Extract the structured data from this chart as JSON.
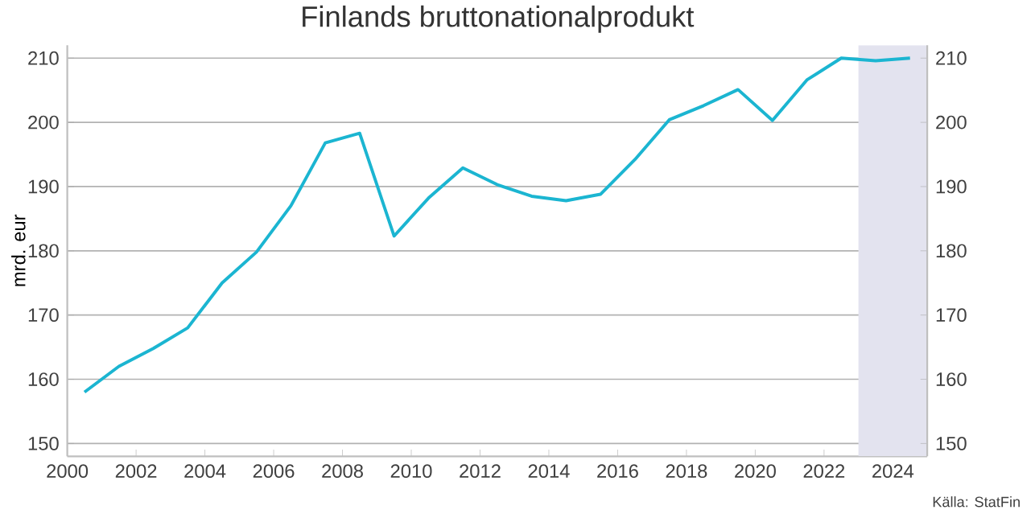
{
  "chart_data": {
    "type": "line",
    "title": "Finlands bruttonationalprodukt",
    "ylabel": "mrd. eur",
    "annotations": [
      "Källa: StatFin"
    ],
    "x": [
      2000.5,
      2001.5,
      2002.5,
      2003.5,
      2004.5,
      2005.5,
      2006.5,
      2007.5,
      2008.5,
      2009.5,
      2010.5,
      2011.5,
      2012.5,
      2013.5,
      2014.5,
      2015.5,
      2016.5,
      2017.5,
      2018.5,
      2019.5,
      2020.5,
      2021.5,
      2022.5,
      2023.5,
      2024.5
    ],
    "series": [
      {
        "color": "#1bb5d1",
        "values": [
          158,
          162,
          164.8,
          168,
          175,
          179.8,
          187,
          196.8,
          198.3,
          182.3,
          188.2,
          192.9,
          190.3,
          188.5,
          187.8,
          188.8,
          194.2,
          200.4,
          202.6,
          205.1,
          200.3,
          206.6,
          210,
          209.6,
          210
        ]
      }
    ],
    "xlim": [
      2000,
      2025
    ],
    "xticks": [
      2000,
      2002,
      2004,
      2006,
      2008,
      2010,
      2012,
      2014,
      2016,
      2018,
      2020,
      2022,
      2024
    ],
    "ylim": [
      148,
      212
    ],
    "yticks": [
      150,
      160,
      170,
      180,
      190,
      200,
      210
    ],
    "y2lim": [
      148,
      212
    ],
    "y2ticks": [
      150,
      160,
      170,
      180,
      190,
      200,
      210
    ],
    "bands": [
      {
        "axis": "x",
        "from": 2023,
        "to": 2025,
        "color": "#e3e3ef"
      }
    ],
    "grid": "y",
    "marker": "none",
    "line_style": "solid"
  }
}
